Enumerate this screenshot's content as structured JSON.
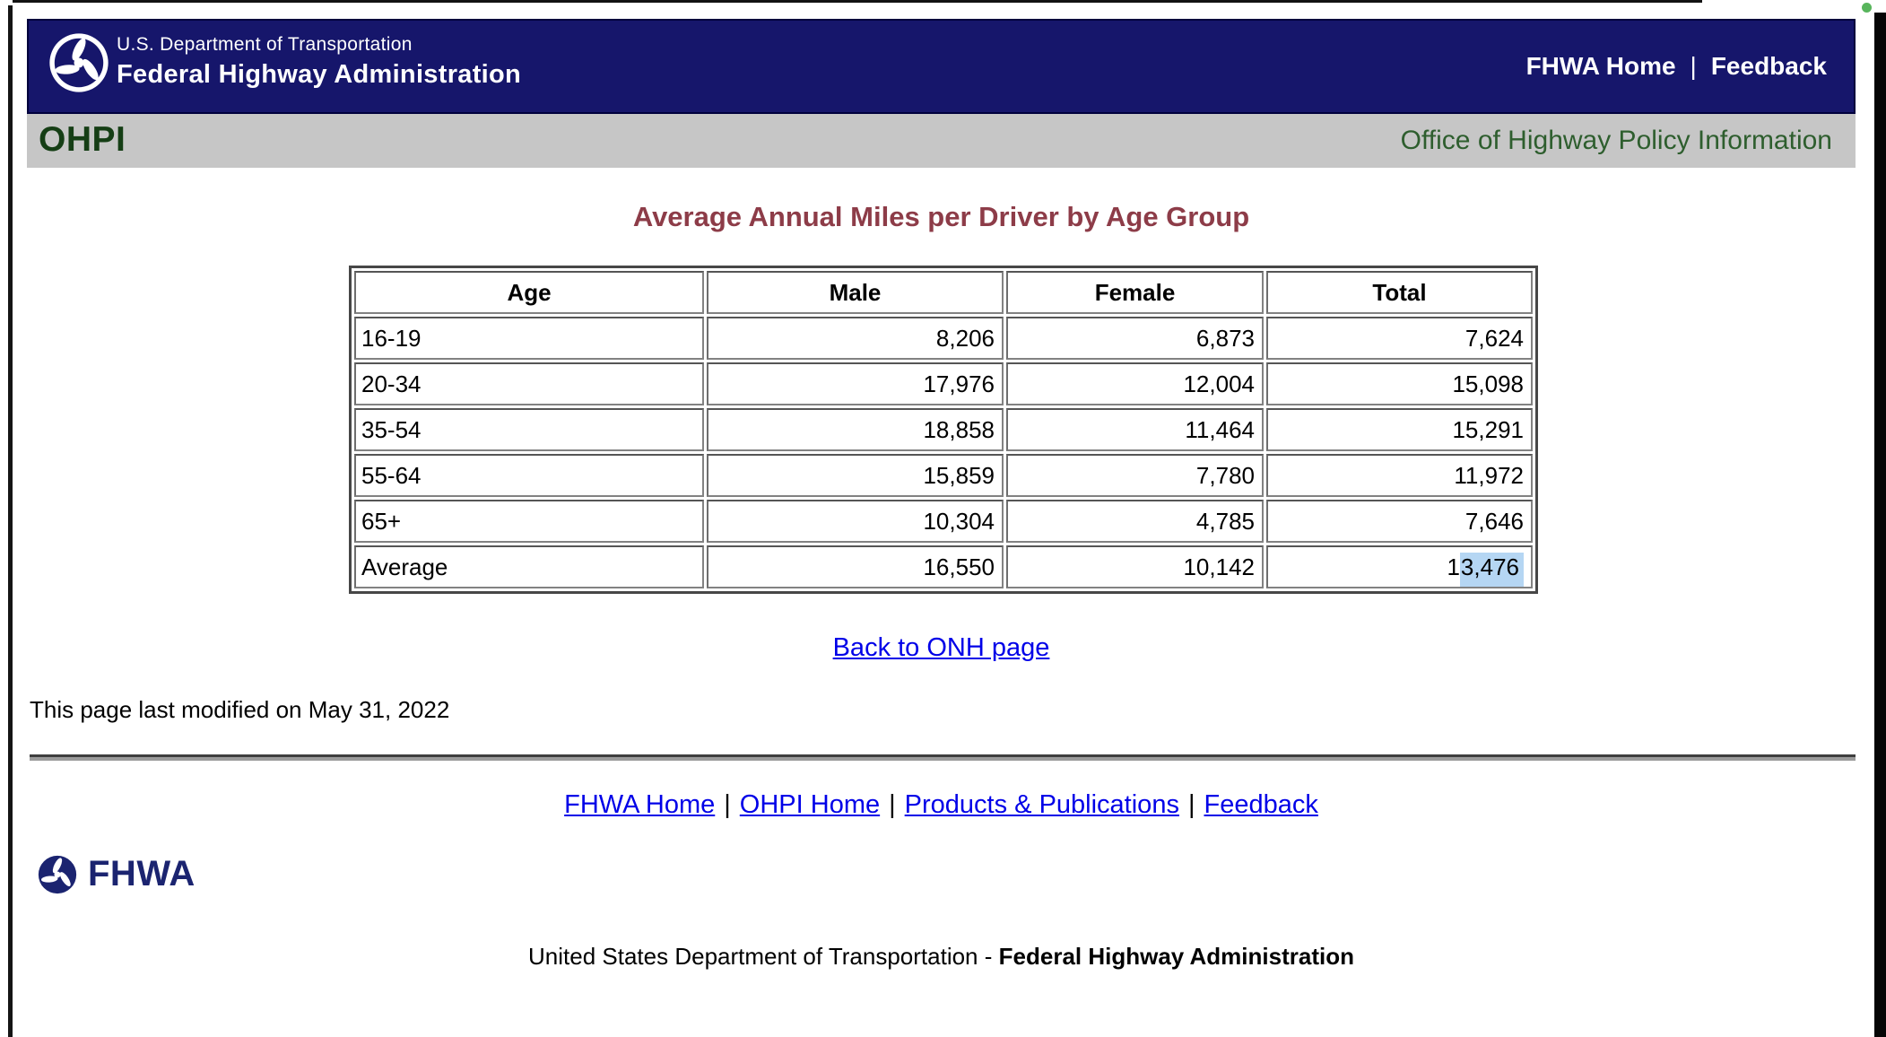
{
  "window": {
    "green_dot_color": "#58b55c"
  },
  "masthead": {
    "agency_small": "U.S. Department of Transportation",
    "agency_large": "Federal Highway Administration",
    "nav_links": [
      "FHWA Home",
      "Feedback"
    ],
    "separator": "|"
  },
  "subheader": {
    "acronym": "OHPI",
    "office_name": "Office of Highway Policy Information"
  },
  "content": {
    "title": "Average Annual Miles per Driver by Age Group",
    "back_link": "Back to ONH page",
    "last_modified": "This page last modified on May 31, 2022"
  },
  "chart_data": {
    "type": "table",
    "title": "Average Annual Miles per Driver by Age Group",
    "columns": [
      "Age",
      "Male",
      "Female",
      "Total"
    ],
    "rows": [
      [
        "16-19",
        8206,
        6873,
        7624
      ],
      [
        "20-34",
        17976,
        12004,
        15098
      ],
      [
        "35-54",
        18858,
        11464,
        15291
      ],
      [
        "55-64",
        15859,
        7780,
        11972
      ],
      [
        "65+",
        10304,
        4785,
        7646
      ],
      [
        "Average",
        16550,
        10142,
        13476
      ]
    ]
  },
  "table": {
    "headers": [
      "Age",
      "Male",
      "Female",
      "Total"
    ],
    "rows": [
      {
        "cells": [
          {
            "text": "16-19"
          },
          {
            "text": "8,206"
          },
          {
            "text": "6,873"
          },
          {
            "text": "7,624"
          }
        ]
      },
      {
        "cells": [
          {
            "text": "20-34"
          },
          {
            "text": "17,976"
          },
          {
            "text": "12,004"
          },
          {
            "text": "15,098"
          }
        ]
      },
      {
        "cells": [
          {
            "text": "35-54"
          },
          {
            "text": "18,858"
          },
          {
            "text": "11,464"
          },
          {
            "text": "15,291"
          }
        ]
      },
      {
        "cells": [
          {
            "text": "55-64"
          },
          {
            "text": "15,859"
          },
          {
            "text": "7,780"
          },
          {
            "text": "11,972"
          }
        ]
      },
      {
        "cells": [
          {
            "text": "65+"
          },
          {
            "text": "10,304"
          },
          {
            "text": "4,785"
          },
          {
            "text": "7,646"
          }
        ]
      },
      {
        "cells": [
          {
            "text": "Average"
          },
          {
            "text": "16,550"
          },
          {
            "text": "10,142"
          },
          {
            "prefix": "1",
            "selected": "3,476"
          }
        ]
      }
    ],
    "selection_color": "#b5d6f3"
  },
  "footer": {
    "links": [
      "FHWA Home",
      "OHPI Home",
      "Products & Publications",
      "Feedback"
    ],
    "separator": "|",
    "logo_text": "FHWA",
    "tagline_plain": "United States Department of Transportation - ",
    "tagline_bold": "Federal Highway Administration"
  },
  "colors": {
    "masthead_navy": "#16166b",
    "subheader_gray": "#c6c6c6",
    "ohpi_green": "#153e15",
    "office_green": "#2e5e2e",
    "title_maroon": "#8d3c48",
    "link_blue": "#0000e8",
    "selection_blue": "#b5d6f3"
  }
}
